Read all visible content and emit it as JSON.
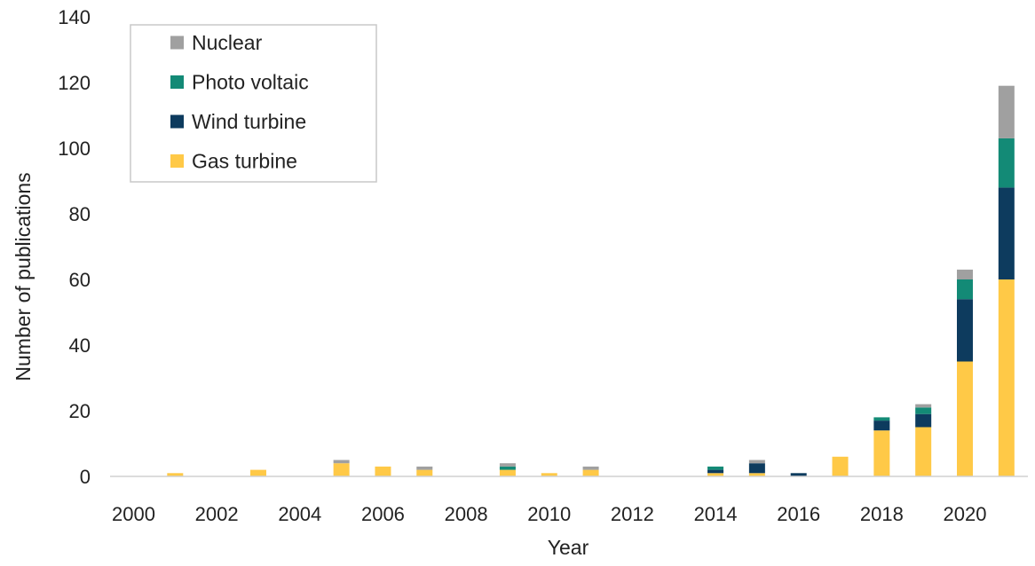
{
  "chart_data": {
    "type": "bar",
    "stacked": true,
    "xlabel": "Year",
    "ylabel": "Number of publications",
    "ylim": [
      0,
      140
    ],
    "yticks": [
      0,
      20,
      40,
      60,
      80,
      100,
      120,
      140
    ],
    "xticks": [
      "2000",
      "2002",
      "2004",
      "2006",
      "2008",
      "2010",
      "2012",
      "2014",
      "2016",
      "2018",
      "2020"
    ],
    "categories": [
      "2000",
      "2001",
      "2002",
      "2003",
      "2004",
      "2005",
      "2006",
      "2007",
      "2008",
      "2009",
      "2010",
      "2011",
      "2012",
      "2013",
      "2014",
      "2015",
      "2016",
      "2017",
      "2018",
      "2019",
      "2020",
      "2021"
    ],
    "series": [
      {
        "name": "Gas turbine",
        "color": "#FFC947",
        "values": [
          0,
          1,
          0,
          2,
          0,
          4,
          3,
          2,
          0,
          2,
          1,
          2,
          0,
          0,
          1,
          1,
          0,
          6,
          14,
          15,
          35,
          60
        ]
      },
      {
        "name": "Wind turbine",
        "color": "#0D3B5E",
        "values": [
          0,
          0,
          0,
          0,
          0,
          0,
          0,
          0,
          0,
          0,
          0,
          0,
          0,
          0,
          1,
          3,
          1,
          0,
          3,
          4,
          19,
          28
        ]
      },
      {
        "name": "Photo voltaic",
        "color": "#138A76",
        "values": [
          0,
          0,
          0,
          0,
          0,
          0,
          0,
          0,
          0,
          1,
          0,
          0,
          0,
          0,
          1,
          0,
          0,
          0,
          1,
          2,
          6,
          15
        ]
      },
      {
        "name": "Nuclear",
        "color": "#A0A0A0",
        "values": [
          0,
          0,
          0,
          0,
          0,
          1,
          0,
          1,
          0,
          1,
          0,
          1,
          0,
          0,
          0,
          1,
          0,
          0,
          0,
          1,
          3,
          16
        ]
      }
    ],
    "legend_order": [
      "Nuclear",
      "Photo voltaic",
      "Wind turbine",
      "Gas turbine"
    ],
    "legend_position": "top-left",
    "grid": false
  }
}
